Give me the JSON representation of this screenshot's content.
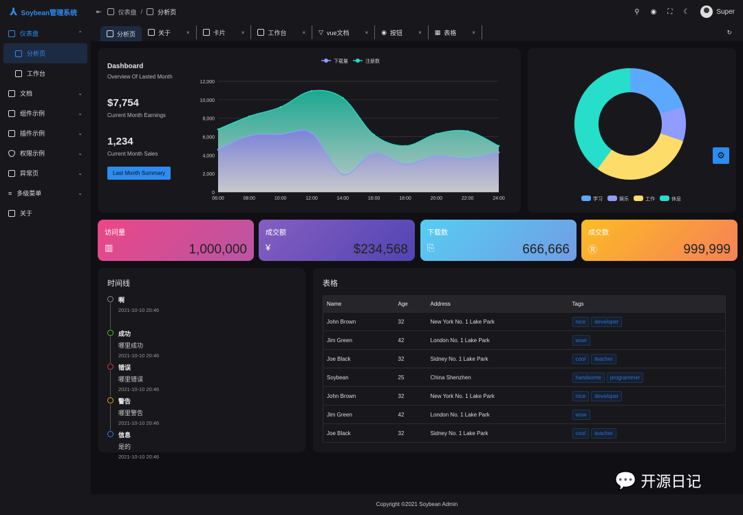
{
  "header": {
    "app_name": "Soybean管理系统",
    "breadcrumb": [
      "仪表盘",
      "分析页"
    ],
    "user": "Super"
  },
  "sidebar": {
    "items": [
      {
        "label": "仪表盘",
        "active_group": true
      },
      {
        "label": "分析页",
        "active": true
      },
      {
        "label": "工作台"
      },
      {
        "label": "文档"
      },
      {
        "label": "组件示例"
      },
      {
        "label": "插件示例"
      },
      {
        "label": "权限示例"
      },
      {
        "label": "异常页"
      },
      {
        "label": "多级菜单"
      },
      {
        "label": "关于"
      }
    ]
  },
  "tabs": [
    {
      "label": "分析页"
    },
    {
      "label": "关于"
    },
    {
      "label": "卡片"
    },
    {
      "label": "工作台"
    },
    {
      "label": "vue文档"
    },
    {
      "label": "按钮"
    },
    {
      "label": "表格"
    }
  ],
  "dashboard": {
    "title": "Dashboard",
    "subtitle": "Overview Of Lasted Month",
    "earnings": "$7,754",
    "earnings_label": "Current Month Earnings",
    "sales": "1,234",
    "sales_label": "Current Month Sales",
    "button": "Last Month Summary"
  },
  "chart_data": [
    {
      "type": "area",
      "title": "",
      "x": [
        "06:00",
        "08:00",
        "10:00",
        "12:00",
        "14:00",
        "16:00",
        "18:00",
        "20:00",
        "22:00",
        "24:00"
      ],
      "yticks": [
        "0",
        "2,000",
        "4,000",
        "6,000",
        "8,000",
        "10,000",
        "12,000"
      ],
      "ylim": [
        0,
        12000
      ],
      "legend_position": "top",
      "series": [
        {
          "name": "下载量",
          "color": "#8e9dff",
          "values": [
            4600,
            6100,
            6250,
            6400,
            1900,
            4200,
            3000,
            3900,
            3600,
            4300
          ]
        },
        {
          "name": "注册数",
          "color": "#26deca",
          "values": [
            6800,
            8200,
            9200,
            10950,
            10200,
            6200,
            5000,
            6300,
            6600,
            5000
          ]
        }
      ]
    },
    {
      "type": "pie",
      "donut": true,
      "legend_position": "bottom",
      "slices": [
        {
          "name": "学习",
          "value": 20,
          "color": "#5da8ff"
        },
        {
          "name": "娱乐",
          "value": 10,
          "color": "#8e9dff"
        },
        {
          "name": "工作",
          "value": 30,
          "color": "#fedc69"
        },
        {
          "name": "休息",
          "value": 40,
          "color": "#26deca"
        }
      ]
    }
  ],
  "stats": [
    {
      "title": "访问量",
      "value": "1,000,000"
    },
    {
      "title": "成交额",
      "value": "$234,568"
    },
    {
      "title": "下载数",
      "value": "666,666"
    },
    {
      "title": "成交数",
      "value": "999,999"
    }
  ],
  "timeline": {
    "title": "时间线",
    "items": [
      {
        "title": "啊",
        "content": "",
        "time": "2021-10-10 20:46",
        "color": "#888888"
      },
      {
        "title": "成功",
        "content": "哪里成功",
        "time": "2021-10-10 20:46",
        "color": "#52c41a"
      },
      {
        "title": "错误",
        "content": "哪里错误",
        "time": "2021-10-10 20:46",
        "color": "#e8303a"
      },
      {
        "title": "警告",
        "content": "哪里警告",
        "time": "2021-10-10 20:46",
        "color": "#f0a020"
      },
      {
        "title": "信息",
        "content": "是的",
        "time": "2021-10-10 20:46",
        "color": "#2d7ee8"
      }
    ]
  },
  "table": {
    "title": "表格",
    "columns": [
      "Name",
      "Age",
      "Address",
      "Tags"
    ],
    "rows": [
      [
        "John Brown",
        "32",
        "New York No. 1 Lake Park",
        [
          "nice",
          "developer"
        ]
      ],
      [
        "Jim Green",
        "42",
        "London No. 1 Lake Park",
        [
          "wow"
        ]
      ],
      [
        "Joe Black",
        "32",
        "Sidney No. 1 Lake Park",
        [
          "cool",
          "teacher"
        ]
      ],
      [
        "Soybean",
        "25",
        "China Shenzhen",
        [
          "handsome",
          "programmer"
        ]
      ],
      [
        "John Brown",
        "32",
        "New York No. 1 Lake Park",
        [
          "nice",
          "developer"
        ]
      ],
      [
        "Jim Green",
        "42",
        "London No. 1 Lake Park",
        [
          "wow"
        ]
      ],
      [
        "Joe Black",
        "32",
        "Sidney No. 1 Lake Park",
        [
          "cool",
          "teacher"
        ]
      ]
    ]
  },
  "footer": "Copyright ©2021 Soybean Admin",
  "watermark": "开源日记"
}
